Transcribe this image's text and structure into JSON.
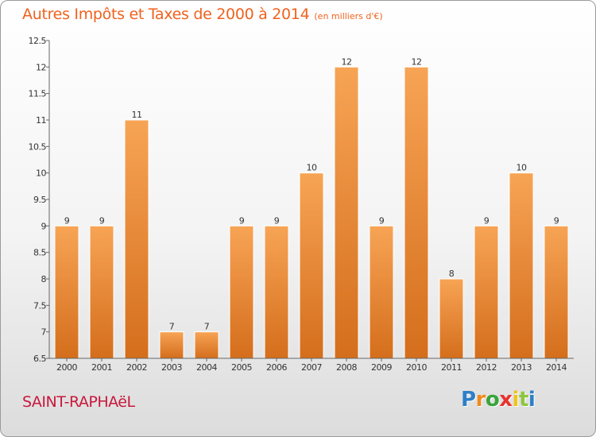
{
  "chart_data": {
    "type": "bar",
    "title": "Autres Impôts et Taxes de 2000 à 2014",
    "subtitle": "(en milliers d'€)",
    "categories": [
      "2000",
      "2001",
      "2002",
      "2003",
      "2004",
      "2005",
      "2006",
      "2007",
      "2008",
      "2009",
      "2010",
      "2011",
      "2012",
      "2013",
      "2014"
    ],
    "values": [
      9,
      9,
      11,
      7,
      7,
      9,
      9,
      10,
      12,
      9,
      12,
      8,
      9,
      10,
      9
    ],
    "data_labels": [
      "9",
      "9",
      "11",
      "7",
      "7",
      "9",
      "9",
      "10",
      "12",
      "9",
      "12",
      "8",
      "9",
      "10",
      "9"
    ],
    "ylim": [
      6.5,
      12.5
    ],
    "y_ticks": [
      6.5,
      7,
      7.5,
      8,
      8.5,
      9,
      9.5,
      10,
      10.5,
      11,
      11.5,
      12,
      12.5
    ],
    "y_tick_labels": [
      "6.5",
      "7",
      "7.5",
      "8",
      "8.5",
      "9",
      "9.5",
      "10",
      "10.5",
      "11",
      "11.5",
      "12",
      "12.5"
    ],
    "bar_color": "#f0913a",
    "grid": false
  },
  "footer": {
    "commune": "SAINT-RAPHAëL",
    "logo_letters": [
      {
        "ch": "P",
        "color": "#2d7fc7"
      },
      {
        "ch": "r",
        "color": "#f08a1e"
      },
      {
        "ch": "o",
        "color": "#3aa43c"
      },
      {
        "ch": "x",
        "color": "#e8322e"
      },
      {
        "ch": "i",
        "color": "#f0c21e"
      },
      {
        "ch": "t",
        "color": "#8dc63f"
      },
      {
        "ch": "i",
        "color": "#2d7fc7"
      }
    ]
  }
}
